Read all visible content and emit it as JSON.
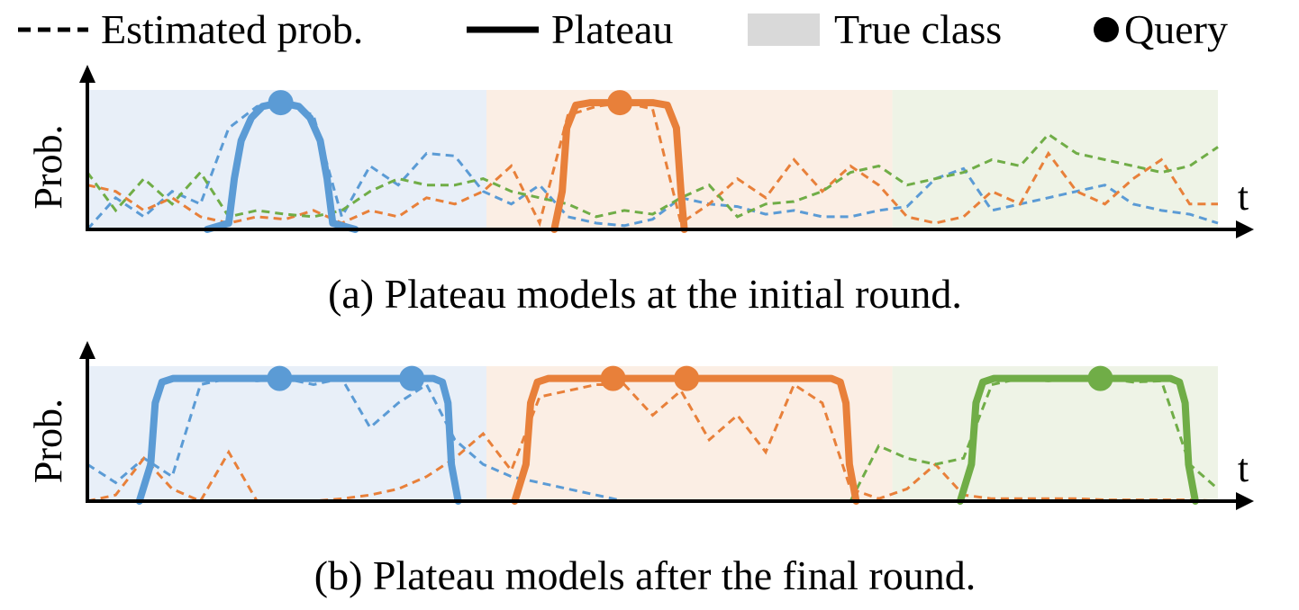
{
  "legend": {
    "items": [
      "Estimated prob.",
      "Plateau",
      "True class",
      "Query"
    ]
  },
  "chart_data": [
    {
      "type": "line",
      "caption": "(a) Plateau models at the initial round.",
      "y_label": "Prob.",
      "x_label": "t",
      "xlim": [
        0,
        100
      ],
      "ylim": [
        0,
        1.1
      ],
      "regions": {
        "x": [
          [
            0,
            35.3
          ],
          [
            35.3,
            71.2
          ],
          [
            71.2,
            100
          ]
        ],
        "colors": [
          "#e8eff8",
          "#fbeee4",
          "#eef3e6"
        ]
      },
      "x": [
        0,
        2.5,
        5,
        7.5,
        10,
        12.5,
        15,
        17.5,
        20,
        22.5,
        25,
        27.5,
        30,
        32.5,
        35,
        37.5,
        40,
        42.5,
        45,
        47.5,
        50,
        52.5,
        55,
        57.5,
        60,
        62.5,
        65,
        67.5,
        70,
        72.5,
        75,
        77.5,
        80,
        82.5,
        85,
        87.5,
        90,
        92.5,
        95,
        97.5,
        100
      ],
      "series": [
        {
          "color": "#5b9bd5",
          "values": [
            0,
            0.25,
            0.1,
            0.3,
            0.2,
            0.8,
            0.97,
            1.0,
            0.9,
            0.1,
            0.5,
            0.35,
            0.6,
            0.58,
            0.3,
            0.2,
            0.35,
            0.1,
            0.05,
            0.03,
            0.08,
            0.25,
            0.2,
            0.18,
            0.12,
            0.15,
            0.1,
            0.1,
            0.15,
            0.18,
            0.4,
            0.48,
            0.15,
            0.2,
            0.25,
            0.3,
            0.35,
            0.2,
            0.15,
            0.12,
            0.05
          ]
        },
        {
          "color": "#e8803a",
          "values": [
            0.35,
            0.3,
            0.15,
            0.25,
            0.1,
            0.05,
            0.1,
            0.08,
            0.15,
            0.05,
            0.15,
            0.1,
            0.25,
            0.2,
            0.3,
            0.5,
            0.05,
            0.9,
            0.97,
            1.0,
            0.95,
            0.05,
            0.2,
            0.4,
            0.25,
            0.55,
            0.3,
            0.5,
            0.35,
            0.1,
            0.05,
            0.1,
            0.3,
            0.2,
            0.6,
            0.3,
            0.2,
            0.4,
            0.55,
            0.2,
            0.2
          ]
        },
        {
          "color": "#70ad47",
          "values": [
            0.45,
            0.15,
            0.4,
            0.2,
            0.45,
            0.1,
            0.15,
            0.12,
            0.1,
            0.15,
            0.3,
            0.4,
            0.35,
            0.35,
            0.4,
            0.3,
            0.25,
            0.2,
            0.1,
            0.15,
            0.12,
            0.25,
            0.35,
            0.1,
            0.2,
            0.22,
            0.3,
            0.45,
            0.5,
            0.35,
            0.4,
            0.45,
            0.55,
            0.5,
            0.75,
            0.6,
            0.55,
            0.5,
            0.45,
            0.5,
            0.65
          ]
        }
      ],
      "plateaus": [
        {
          "color": "#5b9bd5",
          "x": [
            10.6,
            12.5,
            13,
            13.6,
            14.5,
            15.5,
            17.1,
            18.7,
            19.7,
            20.6,
            21.2,
            21.7,
            23.7
          ],
          "values": [
            0,
            0.05,
            0.4,
            0.7,
            0.88,
            0.97,
            1,
            0.97,
            0.88,
            0.7,
            0.4,
            0.05,
            0
          ]
        },
        {
          "color": "#e8803a",
          "x": [
            41.3,
            42,
            42.4,
            43.2,
            44.5,
            50,
            51.3,
            52.1,
            52.5,
            52.8
          ],
          "values": [
            0,
            0.3,
            0.8,
            0.98,
            1,
            1,
            0.98,
            0.8,
            0.3,
            0
          ]
        }
      ],
      "queries": {
        "x": [
          17.1,
          47.1
        ],
        "values": [
          1,
          1
        ],
        "colors": [
          "#5b9bd5",
          "#e8803a"
        ]
      }
    },
    {
      "type": "line",
      "caption": "(b) Plateau models after the final round.",
      "y_label": "Prob.",
      "x_label": "t",
      "xlim": [
        0,
        100
      ],
      "ylim": [
        0,
        1.1
      ],
      "regions": {
        "x": [
          [
            0,
            35.3
          ],
          [
            35.3,
            71.2
          ],
          [
            71.2,
            100
          ]
        ],
        "colors": [
          "#e8eff8",
          "#fbeee4",
          "#eef3e6"
        ]
      },
      "x": [
        0,
        2.5,
        5,
        7.5,
        10,
        12.5,
        15,
        17.5,
        20,
        22.5,
        25,
        27.5,
        30,
        32.5,
        35,
        37.5,
        40,
        42.5,
        45,
        47.5,
        50,
        52.5,
        55,
        57.5,
        60,
        62.5,
        65,
        67.5,
        70,
        72.5,
        75,
        77.5,
        80,
        82.5,
        85,
        87.5,
        90,
        92.5,
        95,
        97.5,
        100
      ],
      "series": [
        {
          "color": "#5b9bd5",
          "values": [
            0.3,
            0.15,
            0.35,
            0.2,
            0.95,
            1.0,
            0.98,
            1.0,
            0.95,
            1.0,
            0.6,
            0.8,
            0.95,
            0.5,
            0.3,
            0.2,
            0.15,
            0.1,
            0.05,
            0,
            0,
            0,
            0,
            0,
            0,
            0,
            0,
            null,
            null,
            null,
            null,
            null,
            null,
            null,
            null,
            null,
            null,
            null,
            null,
            null,
            null
          ]
        },
        {
          "color": "#e8803a",
          "values": [
            0,
            0.05,
            0.35,
            0.1,
            0,
            0.4,
            0,
            0,
            0,
            0.02,
            0.05,
            0.1,
            0.2,
            0.35,
            0.55,
            0.25,
            0.85,
            0.9,
            0.95,
            0.95,
            0.7,
            0.9,
            0.5,
            0.7,
            0.4,
            0.95,
            0.8,
            0.1,
            0.02,
            0.1,
            0.3,
            0.05,
            0.02,
            0.02,
            0.02,
            0.02,
            0.01,
            0.01,
            0.01,
            0.01,
            0
          ]
        },
        {
          "color": "#70ad47",
          "values": [
            null,
            null,
            null,
            null,
            null,
            null,
            null,
            null,
            null,
            null,
            null,
            null,
            null,
            null,
            null,
            null,
            null,
            null,
            null,
            null,
            null,
            null,
            null,
            null,
            null,
            null,
            null,
            0,
            0.45,
            0.35,
            0.3,
            0.35,
            0.95,
            1.0,
            0.98,
            1.0,
            1.0,
            0.97,
            0.98,
            0.3,
            0.1
          ]
        }
      ],
      "plateaus": [
        {
          "color": "#5b9bd5",
          "x": [
            4.6,
            5.6,
            6,
            6.6,
            7.6,
            30.6,
            31.4,
            31.9,
            32.2,
            32.8
          ],
          "values": [
            0,
            0.3,
            0.8,
            0.97,
            1,
            1,
            0.97,
            0.8,
            0.3,
            0
          ]
        },
        {
          "color": "#e8803a",
          "x": [
            37.8,
            38.8,
            39.2,
            39.8,
            40.8,
            65.8,
            66.6,
            67.1,
            67.4,
            68
          ],
          "values": [
            0,
            0.3,
            0.8,
            0.97,
            1,
            1,
            0.97,
            0.8,
            0.3,
            0
          ]
        },
        {
          "color": "#70ad47",
          "x": [
            77.2,
            78.2,
            78.6,
            79.2,
            80.2,
            95.8,
            96.6,
            97.1,
            97.4,
            98
          ],
          "values": [
            0,
            0.3,
            0.8,
            0.97,
            1,
            1,
            0.97,
            0.8,
            0.3,
            0
          ]
        }
      ],
      "queries": {
        "x": [
          17,
          28.7,
          46.5,
          53,
          89.6
        ],
        "values": [
          1,
          1,
          1,
          1,
          1
        ],
        "colors": [
          "#5b9bd5",
          "#5b9bd5",
          "#e8803a",
          "#e8803a",
          "#70ad47"
        ]
      }
    }
  ]
}
